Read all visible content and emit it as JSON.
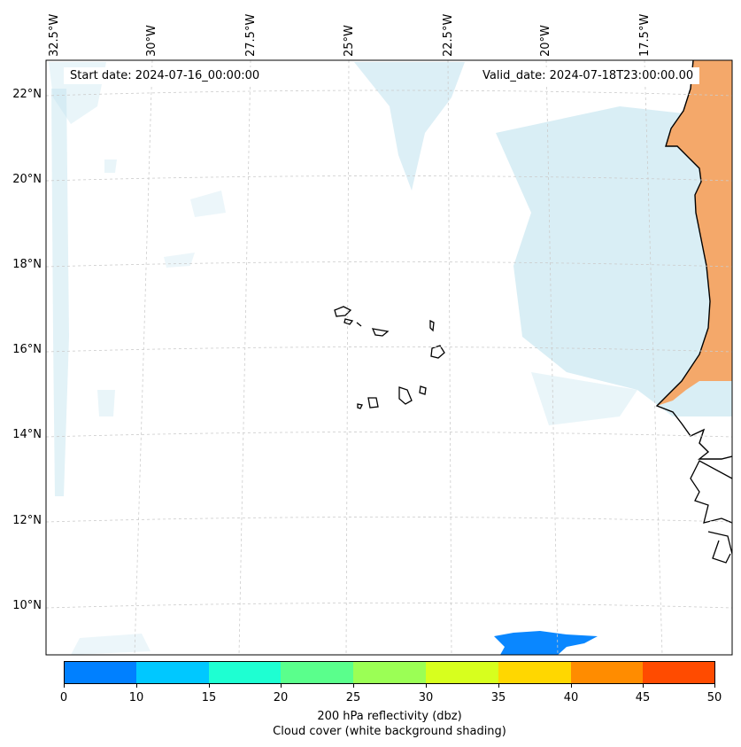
{
  "map": {
    "start_date": "Start date: 2024-07-16_00:00:00",
    "valid_date": "Valid_date: 2024-07-18T23:00:00.00",
    "longitude_labels": [
      "32.5°W",
      "30°W",
      "27.5°W",
      "25°W",
      "22.5°W",
      "20°W",
      "17.5°W"
    ],
    "latitude_labels": [
      "22°N",
      "20°N",
      "18°N",
      "16°N",
      "14°N",
      "12°N",
      "10°N"
    ],
    "features": {
      "land_fill_color": "#f4a86a",
      "cloud_color": "#bfe2ee",
      "reflectivity_blob_color": "#0a87ff",
      "coastline_color": "#000000",
      "gridline_color": "#cccccc"
    }
  },
  "colorbar": {
    "ticks": [
      "0",
      "10",
      "15",
      "20",
      "25",
      "30",
      "35",
      "40",
      "45",
      "50"
    ],
    "colors": [
      "#0080ff",
      "#00c8ff",
      "#1effd2",
      "#5aff8c",
      "#9bff55",
      "#d7ff1e",
      "#ffd700",
      "#ff8c00",
      "#ff4b00"
    ],
    "label_line1": "200 hPa reflectivity (dbz)",
    "label_line2": "Cloud cover (white background shading)"
  }
}
